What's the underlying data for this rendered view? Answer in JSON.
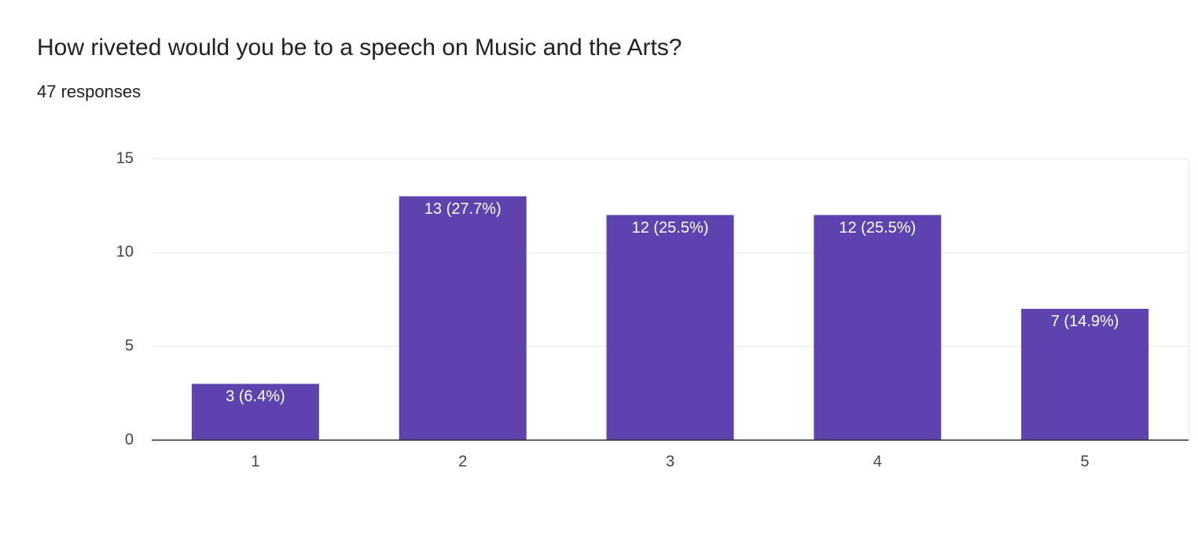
{
  "chart_data": {
    "type": "bar",
    "title": "How riveted would you be to a speech on Music and the Arts?",
    "subtitle": "47 responses",
    "categories": [
      "1",
      "2",
      "3",
      "4",
      "5"
    ],
    "values": [
      3,
      13,
      12,
      12,
      7
    ],
    "value_labels": [
      "3 (6.4%)",
      "13 (27.7%)",
      "12 (25.5%)",
      "12 (25.5%)",
      "7 (14.9%)"
    ],
    "color": "#5e43ae",
    "ylim": [
      0,
      15
    ],
    "yticks": [
      0,
      5,
      10,
      15
    ],
    "grid": true
  }
}
